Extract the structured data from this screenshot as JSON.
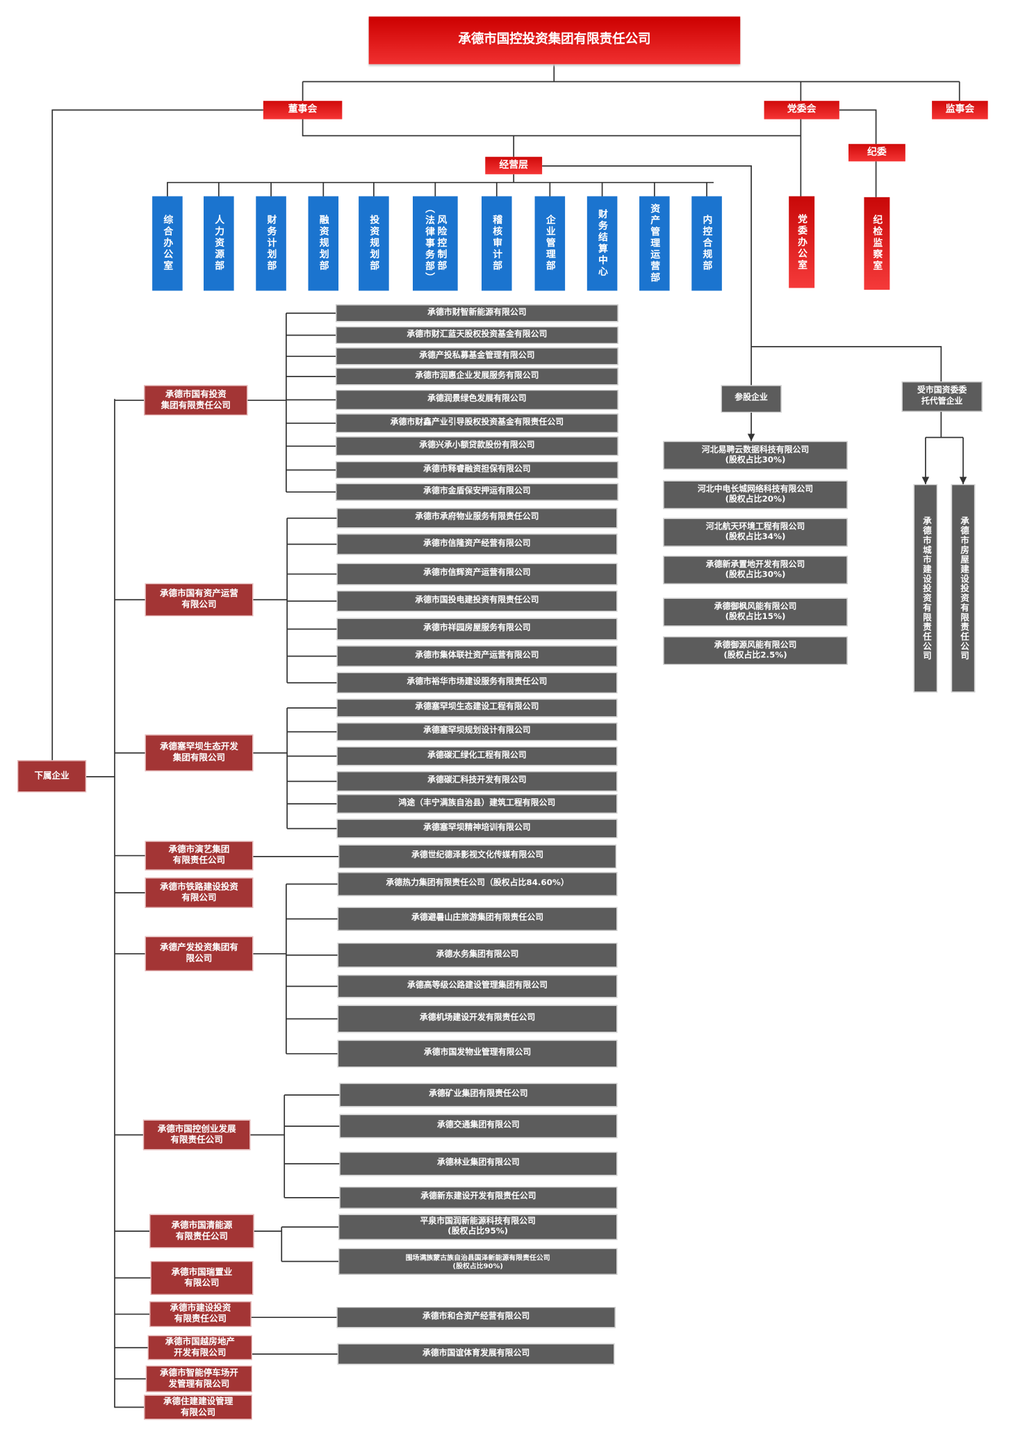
{
  "colors": {
    "top_red": "#e01515",
    "blue": "#1b74cf",
    "subsidiary_red": "#a33535",
    "gray": "#5c5c5c",
    "line": "#333333"
  },
  "top": {
    "title": "承德市国控投资集团有限责任公司"
  },
  "governance": {
    "board": "董事会",
    "party": "党委会",
    "supervisors": "监事会",
    "discipline": "纪委",
    "management": "经营层",
    "party_office": "党委办公室",
    "discipline_office": "纪检监察室"
  },
  "departments": [
    {
      "label": "综合办公室"
    },
    {
      "label": "人力资源部"
    },
    {
      "label": "财务计划部"
    },
    {
      "label": "融资规划部"
    },
    {
      "label": "投资规划部"
    },
    {
      "label": "风险控制部\n（法律事务部）"
    },
    {
      "label": "稽核审计部"
    },
    {
      "label": "企业管理部"
    },
    {
      "label": "财务结算中心"
    },
    {
      "label": "资产管理运营部"
    },
    {
      "label": "内控合规部"
    }
  ],
  "subordinate": {
    "label": "下属企业",
    "groups": [
      {
        "name": "承德市国有投资\n集团有限责任公司",
        "children": [
          "承德市财智新能源有限公司",
          "承德市财汇蓝天股权投资基金有限公司",
          "承德产投私募基金管理有限公司",
          "承德市润惠企业发展服务有限公司",
          "承德润景绿色发展有限公司",
          "承德市财鑫产业引导股权投资基金有限责任公司",
          "承德兴承小额贷款股份有限公司",
          "承德市释睿融资担保有限公司",
          "承德市金盾保安押运有限公司"
        ]
      },
      {
        "name": "承德市国有资产运营\n有限公司",
        "children": [
          "承德市承府物业服务有限责任公司",
          "承德市信隆资产经营有限公司",
          "承德市信辉资产运营有限公司",
          "承德市国投电建投资有限责任公司",
          "承德市祥园房屋服务有限公司",
          "承德市集体联社资产运营有限公司",
          "承德市裕华市场建设服务有限责任公司"
        ]
      },
      {
        "name": "承德塞罕坝生态开发\n集团有限公司",
        "children": [
          "承德塞罕坝生态建设工程有限公司",
          "承德塞罕坝规划设计有限公司",
          "承德碳汇绿化工程有限公司",
          "承德碳汇科技开发有限公司",
          "鸿途（丰宁满族自治县）建筑工程有限公司",
          "承德塞罕坝精神培训有限公司"
        ]
      },
      {
        "name": "承德市演艺集团\n有限责任公司",
        "children": [
          "承德世纪德泽影视文化传媒有限公司"
        ]
      },
      {
        "name": "承德市铁路建设投资\n有限公司",
        "children": []
      },
      {
        "name": "承德产发投资集团有\n限公司",
        "children": [
          "承德热力集团有限责任公司（股权占比84.60%）",
          "承德避暑山庄旅游集团有限责任公司",
          "承德水务集团有限公司",
          "承德高等级公路建设管理集团有限公司",
          "承德机场建设开发有限责任公司",
          "承德市国发物业管理有限公司"
        ]
      },
      {
        "name": "承德市国控创业发展\n有限责任公司",
        "children": [
          "承德矿业集团有限责任公司",
          "承德交通集团有限公司",
          "承德林业集团有限公司",
          "承德新东建设开发有限责任公司"
        ]
      },
      {
        "name": "承德市国清能源\n有限责任公司",
        "children": [
          "平泉市国润新能源科技有限公司\n(股权占比95%)",
          "围场满族蒙古族自治县国泽新能源有限责任公司\n(股权占比90%)"
        ]
      },
      {
        "name": "承德市国瑞置业\n有限公司",
        "children": []
      },
      {
        "name": "承德市建设投资\n有限责任公司",
        "children": [
          "承德市和合资产经营有限公司"
        ]
      },
      {
        "name": "承德市国越房地产\n开发有限公司",
        "children": [
          "承德市国谊体育发展有限公司"
        ]
      },
      {
        "name": "承德市智能停车场开\n发管理有限公司",
        "children": []
      },
      {
        "name": "承德住建建设管理\n有限公司",
        "children": []
      }
    ]
  },
  "equity": {
    "label": "参股企业",
    "items": [
      "河北易聘云数据科技有限公司\n(股权占比30%)",
      "河北中电长城网络科技有限公司\n(股权占比20%)",
      "河北航天环境工程有限公司\n(股权占比34%)",
      "承德新承置地开发有限公司\n(股权占比30%)",
      "承德御枫风能有限公司\n(股权占比15%)",
      "承德御源风能有限公司\n(股权占比2.5%)"
    ]
  },
  "entrusted": {
    "label": "受市国资委委\n托代管企业",
    "items": [
      "承德市城市建设投资有限责任公司",
      "承德市房屋建设投资有限责任公司"
    ]
  }
}
